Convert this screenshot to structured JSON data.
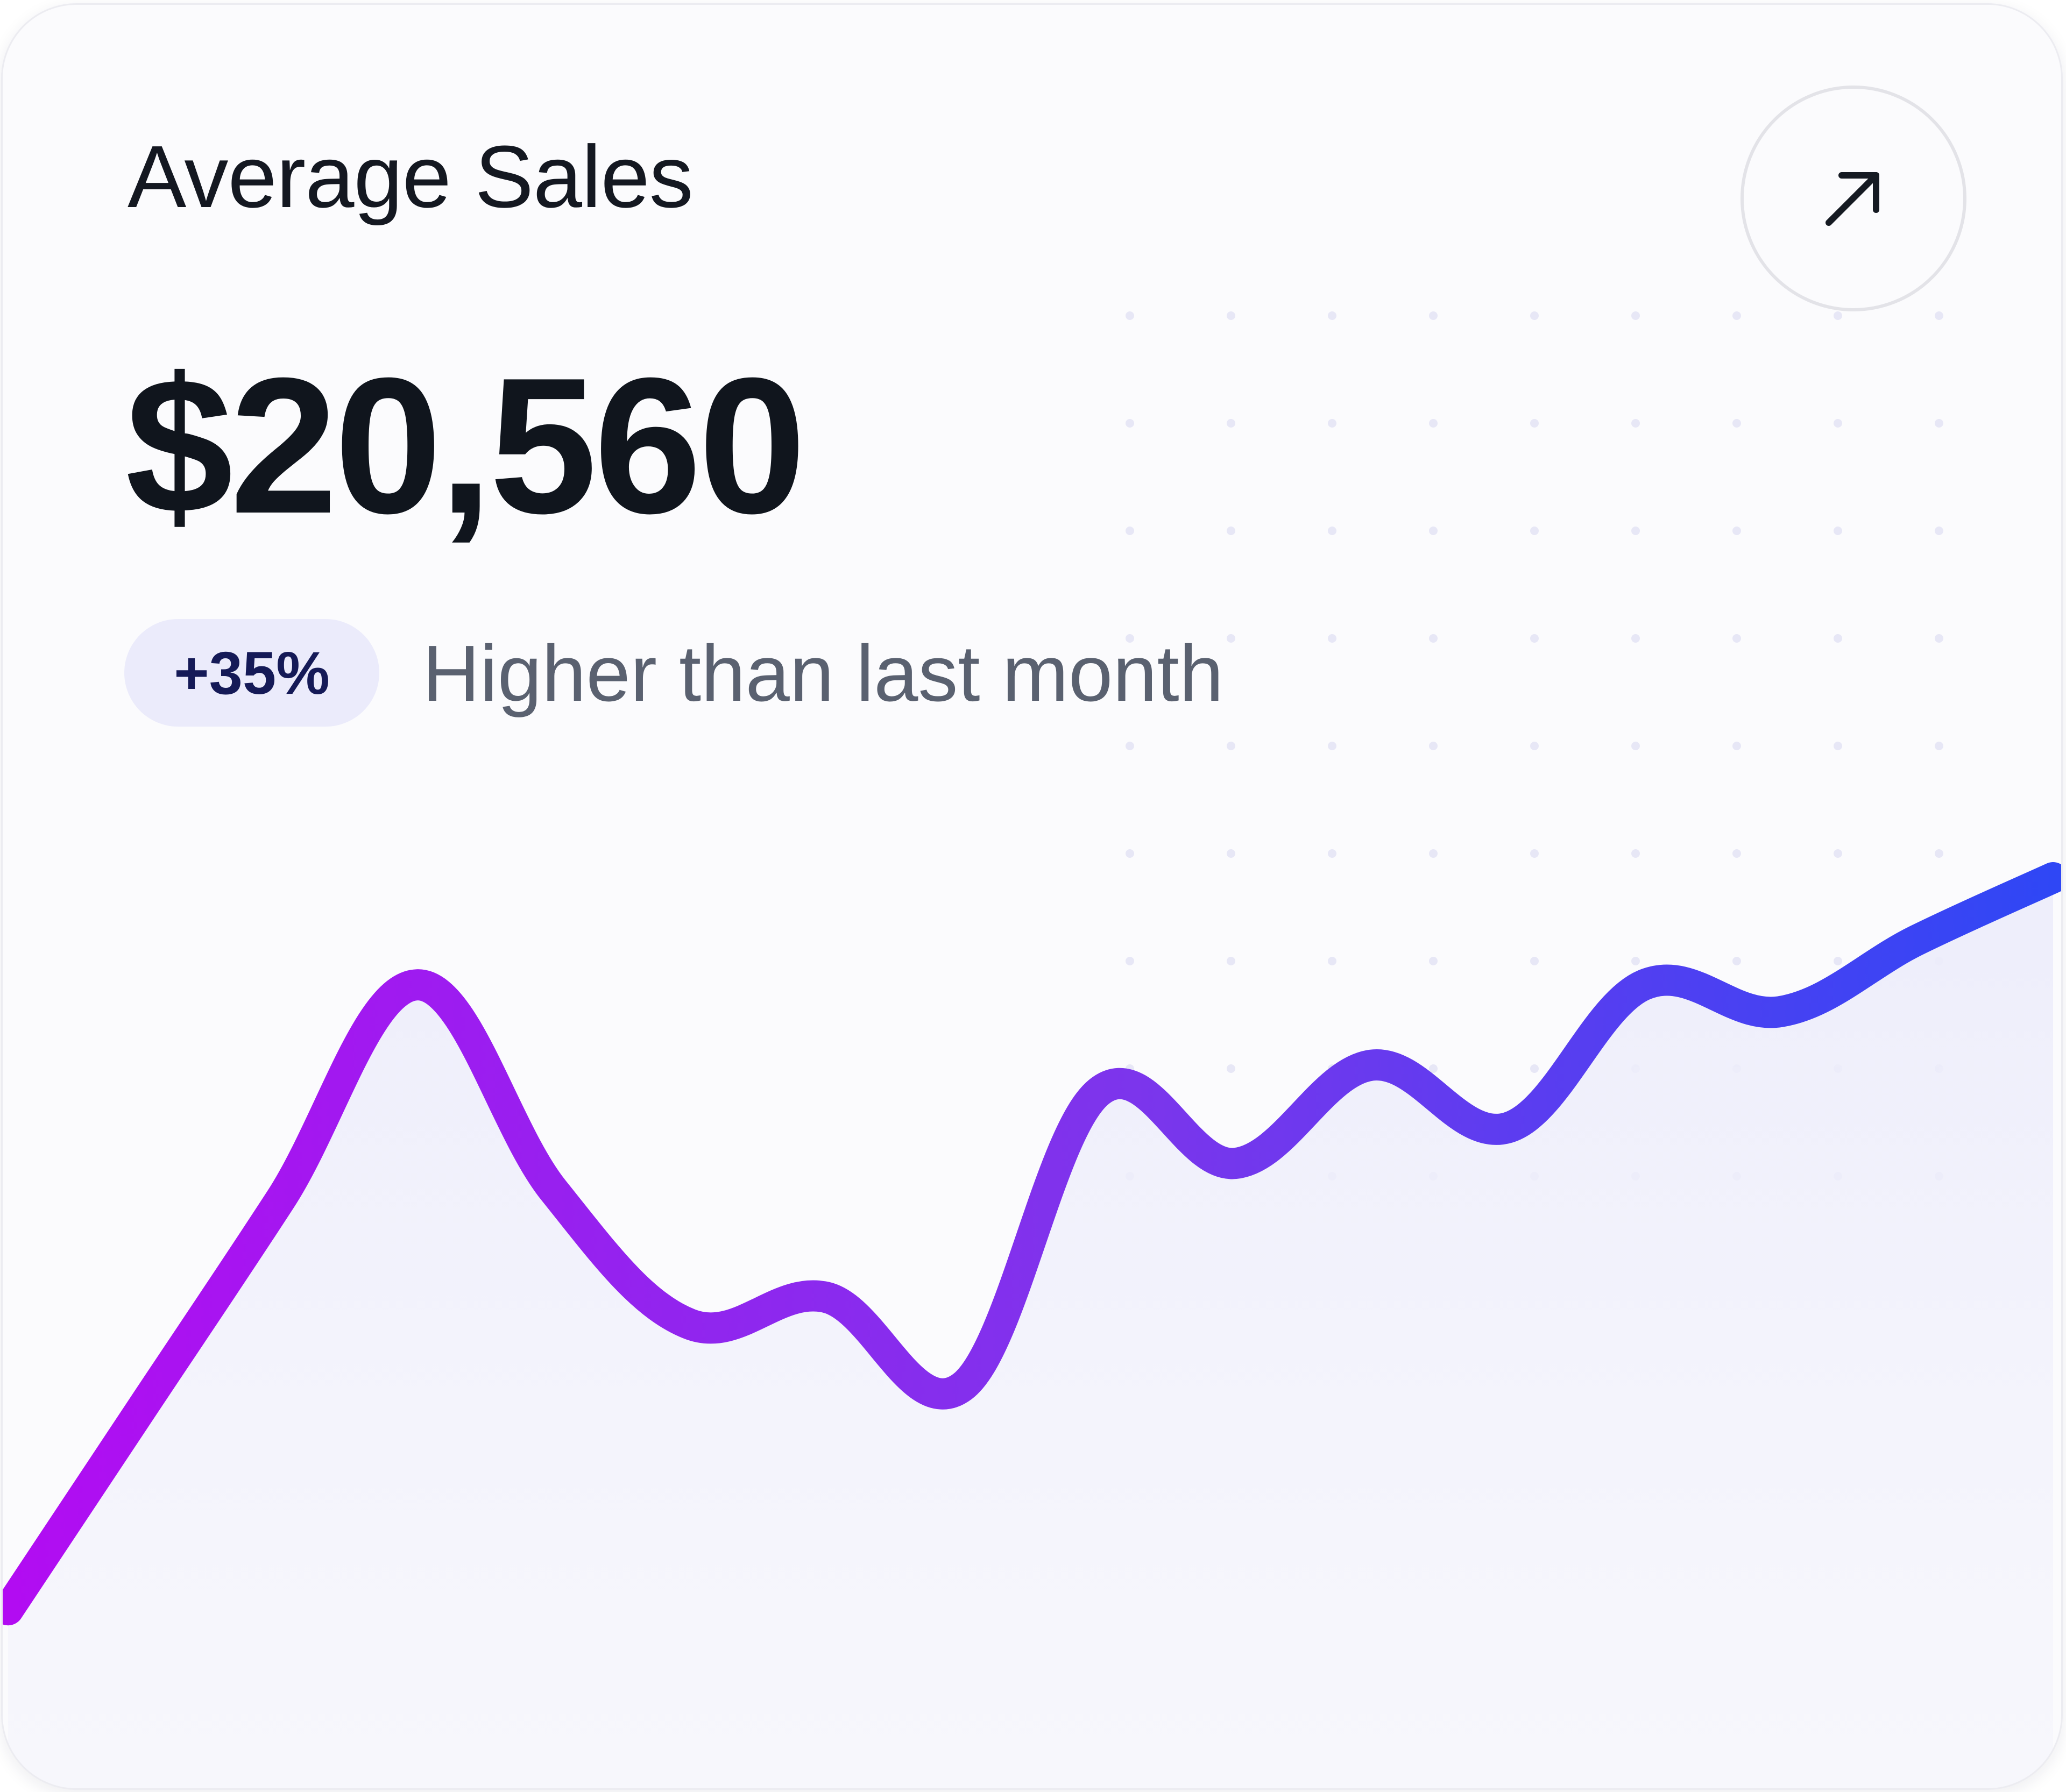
{
  "card": {
    "title": "Average Sales",
    "amount": "$20,560",
    "change_badge": "+35%",
    "comparison_text": "Higher than last month",
    "open_icon": "arrow-up-right-icon"
  },
  "colors": {
    "card_background": "#fbfbfd",
    "title_text": "#141821",
    "amount_text": "#10151d",
    "badge_background": "#ebebfb",
    "badge_text": "#151a57",
    "muted_text": "#5a6170",
    "line_gradient_start": "#b20cf2",
    "line_gradient_mid": "#7c35ec",
    "line_gradient_end": "#2f47f5",
    "area_fill": "#ececfb"
  },
  "chart_data": {
    "type": "area",
    "x": [
      0,
      1,
      2,
      3,
      4,
      5,
      6,
      7,
      8,
      9,
      10,
      11,
      12,
      13,
      14,
      15
    ],
    "y": [
      0.13,
      0.36,
      0.59,
      0.83,
      0.6,
      0.45,
      0.48,
      0.38,
      0.71,
      0.63,
      0.74,
      0.67,
      0.83,
      0.8,
      0.88,
      0.95
    ],
    "ylim": [
      0,
      1
    ],
    "xlabel": "",
    "ylabel": "",
    "grid": false,
    "legend": "none"
  }
}
